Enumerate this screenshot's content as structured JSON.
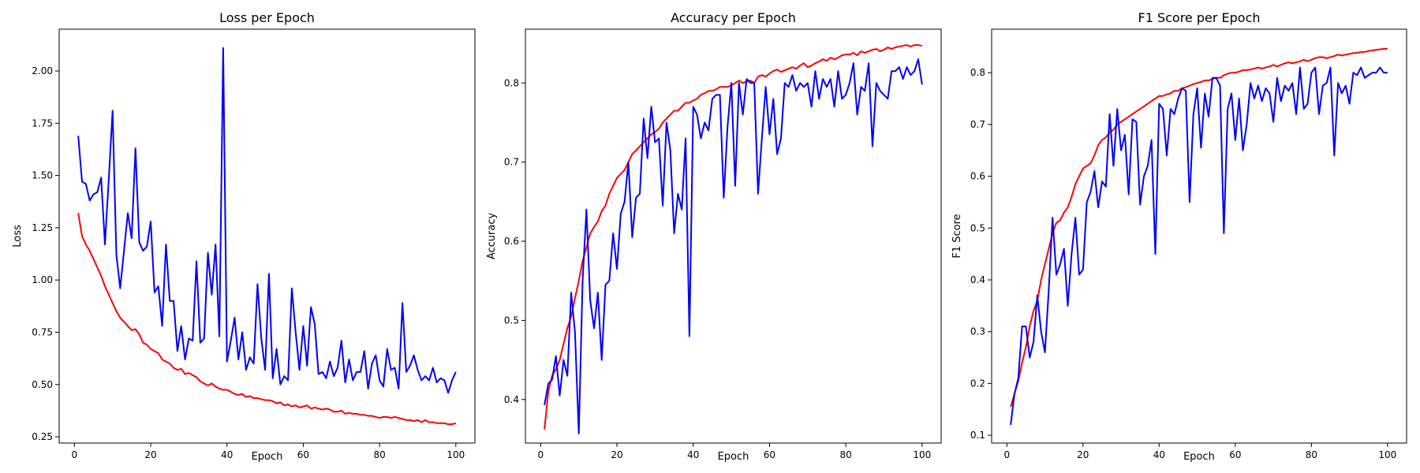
{
  "chart_data": [
    {
      "type": "line",
      "title": "Loss per Epoch",
      "xlabel": "Epoch",
      "ylabel": "Loss",
      "xlim": [
        -4,
        105
      ],
      "ylim": [
        0.22,
        2.2
      ],
      "xticks": [
        0,
        20,
        40,
        60,
        80,
        100
      ],
      "yticks": [
        0.25,
        0.5,
        0.75,
        1.0,
        1.25,
        1.5,
        1.75,
        2.0
      ],
      "ytick_labels": [
        "0.25",
        "0.50",
        "0.75",
        "1.00",
        "1.25",
        "1.50",
        "1.75",
        "2.00"
      ],
      "grid": false,
      "series": [
        {
          "color": "#ff0000",
          "values": [
            1.32,
            1.21,
            1.17,
            1.14,
            1.1,
            1.06,
            1.02,
            0.97,
            0.93,
            0.89,
            0.85,
            0.82,
            0.8,
            0.78,
            0.76,
            0.765,
            0.74,
            0.7,
            0.69,
            0.67,
            0.66,
            0.65,
            0.62,
            0.61,
            0.6,
            0.58,
            0.57,
            0.575,
            0.55,
            0.555,
            0.545,
            0.535,
            0.515,
            0.505,
            0.495,
            0.505,
            0.49,
            0.48,
            0.475,
            0.475,
            0.465,
            0.455,
            0.45,
            0.455,
            0.44,
            0.445,
            0.435,
            0.435,
            0.43,
            0.425,
            0.425,
            0.42,
            0.41,
            0.415,
            0.4,
            0.405,
            0.395,
            0.4,
            0.39,
            0.395,
            0.4,
            0.385,
            0.39,
            0.385,
            0.38,
            0.385,
            0.38,
            0.37,
            0.37,
            0.375,
            0.36,
            0.365,
            0.36,
            0.36,
            0.355,
            0.355,
            0.35,
            0.35,
            0.345,
            0.34,
            0.345,
            0.345,
            0.34,
            0.345,
            0.34,
            0.335,
            0.33,
            0.33,
            0.325,
            0.33,
            0.32,
            0.33,
            0.32,
            0.32,
            0.315,
            0.315,
            0.315,
            0.31,
            0.31,
            0.315
          ]
        },
        {
          "color": "#0000ff",
          "values": [
            1.69,
            1.47,
            1.46,
            1.38,
            1.41,
            1.42,
            1.49,
            1.17,
            1.48,
            1.81,
            1.12,
            0.96,
            1.14,
            1.32,
            1.2,
            1.63,
            1.18,
            1.14,
            1.16,
            1.28,
            0.94,
            0.97,
            0.78,
            1.17,
            0.9,
            0.9,
            0.66,
            0.78,
            0.62,
            0.72,
            0.71,
            1.09,
            0.7,
            0.72,
            1.13,
            0.93,
            1.17,
            0.73,
            2.11,
            0.61,
            0.71,
            0.82,
            0.62,
            0.75,
            0.57,
            0.63,
            0.6,
            0.98,
            0.72,
            0.57,
            1.03,
            0.53,
            0.67,
            0.5,
            0.54,
            0.52,
            0.96,
            0.75,
            0.57,
            0.78,
            0.59,
            0.87,
            0.79,
            0.55,
            0.56,
            0.53,
            0.61,
            0.54,
            0.58,
            0.71,
            0.51,
            0.62,
            0.52,
            0.56,
            0.56,
            0.66,
            0.48,
            0.6,
            0.64,
            0.52,
            0.49,
            0.67,
            0.57,
            0.58,
            0.48,
            0.89,
            0.56,
            0.59,
            0.64,
            0.57,
            0.52,
            0.54,
            0.52,
            0.58,
            0.51,
            0.53,
            0.52,
            0.46,
            0.52,
            0.56
          ]
        }
      ]
    },
    {
      "type": "line",
      "title": "Accuracy per Epoch",
      "xlabel": "Epoch",
      "ylabel": "Accuracy",
      "xlim": [
        -4,
        105
      ],
      "ylim": [
        0.345,
        0.868
      ],
      "xticks": [
        0,
        20,
        40,
        60,
        80,
        100
      ],
      "yticks": [
        0.4,
        0.5,
        0.6,
        0.7,
        0.8
      ],
      "ytick_labels": [
        "0.4",
        "0.5",
        "0.6",
        "0.7",
        "0.8"
      ],
      "grid": false,
      "series": [
        {
          "color": "#ff0000",
          "values": [
            0.362,
            0.41,
            0.43,
            0.438,
            0.45,
            0.47,
            0.49,
            0.505,
            0.528,
            0.55,
            0.575,
            0.592,
            0.61,
            0.618,
            0.625,
            0.638,
            0.645,
            0.66,
            0.67,
            0.68,
            0.685,
            0.69,
            0.7,
            0.71,
            0.715,
            0.72,
            0.725,
            0.73,
            0.735,
            0.738,
            0.742,
            0.75,
            0.755,
            0.76,
            0.765,
            0.765,
            0.77,
            0.775,
            0.775,
            0.778,
            0.78,
            0.785,
            0.787,
            0.79,
            0.79,
            0.792,
            0.795,
            0.795,
            0.795,
            0.797,
            0.8,
            0.803,
            0.8,
            0.802,
            0.803,
            0.8,
            0.808,
            0.81,
            0.808,
            0.812,
            0.815,
            0.817,
            0.814,
            0.816,
            0.818,
            0.82,
            0.818,
            0.822,
            0.825,
            0.82,
            0.822,
            0.825,
            0.827,
            0.83,
            0.828,
            0.832,
            0.83,
            0.832,
            0.835,
            0.836,
            0.836,
            0.838,
            0.835,
            0.84,
            0.838,
            0.84,
            0.842,
            0.843,
            0.84,
            0.842,
            0.845,
            0.843,
            0.845,
            0.846,
            0.847,
            0.848,
            0.846,
            0.848,
            0.848,
            0.847
          ]
        },
        {
          "color": "#0000ff",
          "values": [
            0.393,
            0.42,
            0.425,
            0.455,
            0.405,
            0.45,
            0.43,
            0.535,
            0.485,
            0.357,
            0.55,
            0.64,
            0.525,
            0.49,
            0.535,
            0.45,
            0.545,
            0.55,
            0.61,
            0.565,
            0.635,
            0.65,
            0.7,
            0.605,
            0.655,
            0.66,
            0.755,
            0.705,
            0.77,
            0.725,
            0.73,
            0.645,
            0.75,
            0.715,
            0.61,
            0.66,
            0.64,
            0.73,
            0.48,
            0.77,
            0.76,
            0.73,
            0.75,
            0.74,
            0.78,
            0.785,
            0.785,
            0.655,
            0.745,
            0.8,
            0.67,
            0.8,
            0.76,
            0.805,
            0.8,
            0.8,
            0.66,
            0.73,
            0.795,
            0.735,
            0.78,
            0.71,
            0.73,
            0.8,
            0.795,
            0.81,
            0.79,
            0.8,
            0.795,
            0.8,
            0.77,
            0.815,
            0.78,
            0.805,
            0.795,
            0.805,
            0.77,
            0.815,
            0.78,
            0.785,
            0.8,
            0.825,
            0.76,
            0.795,
            0.79,
            0.825,
            0.72,
            0.8,
            0.79,
            0.785,
            0.78,
            0.815,
            0.815,
            0.82,
            0.805,
            0.82,
            0.81,
            0.815,
            0.83,
            0.798
          ]
        }
      ]
    },
    {
      "type": "line",
      "title": "F1 Score per Epoch",
      "xlabel": "Epoch",
      "ylabel": "F1 Score",
      "xlim": [
        -4,
        105
      ],
      "ylim": [
        0.085,
        0.884
      ],
      "xticks": [
        0,
        20,
        40,
        60,
        80,
        100
      ],
      "yticks": [
        0.1,
        0.2,
        0.3,
        0.4,
        0.5,
        0.6,
        0.7,
        0.8
      ],
      "ytick_labels": [
        "0.1",
        "0.2",
        "0.3",
        "0.4",
        "0.5",
        "0.6",
        "0.7",
        "0.8"
      ],
      "grid": false,
      "series": [
        {
          "color": "#ff0000",
          "values": [
            0.155,
            0.18,
            0.205,
            0.24,
            0.27,
            0.31,
            0.34,
            0.36,
            0.4,
            0.43,
            0.46,
            0.49,
            0.51,
            0.515,
            0.53,
            0.54,
            0.56,
            0.585,
            0.6,
            0.615,
            0.62,
            0.625,
            0.64,
            0.66,
            0.67,
            0.675,
            0.685,
            0.69,
            0.7,
            0.705,
            0.71,
            0.715,
            0.72,
            0.725,
            0.73,
            0.735,
            0.74,
            0.745,
            0.75,
            0.755,
            0.755,
            0.758,
            0.76,
            0.765,
            0.765,
            0.77,
            0.772,
            0.775,
            0.778,
            0.78,
            0.782,
            0.785,
            0.785,
            0.788,
            0.79,
            0.79,
            0.795,
            0.798,
            0.8,
            0.8,
            0.802,
            0.805,
            0.805,
            0.806,
            0.808,
            0.81,
            0.808,
            0.81,
            0.812,
            0.815,
            0.812,
            0.815,
            0.818,
            0.82,
            0.818,
            0.82,
            0.822,
            0.825,
            0.822,
            0.825,
            0.828,
            0.83,
            0.83,
            0.828,
            0.83,
            0.832,
            0.835,
            0.833,
            0.835,
            0.836,
            0.838,
            0.838,
            0.84,
            0.84,
            0.842,
            0.843,
            0.844,
            0.845,
            0.846,
            0.846
          ]
        },
        {
          "color": "#0000ff",
          "values": [
            0.12,
            0.18,
            0.21,
            0.31,
            0.31,
            0.25,
            0.28,
            0.37,
            0.3,
            0.26,
            0.38,
            0.52,
            0.41,
            0.43,
            0.46,
            0.35,
            0.45,
            0.52,
            0.41,
            0.42,
            0.55,
            0.57,
            0.61,
            0.54,
            0.59,
            0.58,
            0.72,
            0.62,
            0.73,
            0.65,
            0.68,
            0.565,
            0.71,
            0.705,
            0.545,
            0.6,
            0.62,
            0.67,
            0.45,
            0.74,
            0.73,
            0.64,
            0.73,
            0.72,
            0.75,
            0.77,
            0.765,
            0.55,
            0.72,
            0.77,
            0.655,
            0.76,
            0.715,
            0.79,
            0.79,
            0.775,
            0.49,
            0.73,
            0.76,
            0.67,
            0.75,
            0.65,
            0.7,
            0.78,
            0.75,
            0.775,
            0.745,
            0.77,
            0.76,
            0.705,
            0.79,
            0.745,
            0.775,
            0.765,
            0.78,
            0.72,
            0.81,
            0.73,
            0.74,
            0.8,
            0.81,
            0.72,
            0.775,
            0.78,
            0.81,
            0.64,
            0.78,
            0.76,
            0.775,
            0.74,
            0.8,
            0.795,
            0.81,
            0.79,
            0.795,
            0.8,
            0.8,
            0.81,
            0.8,
            0.8
          ]
        }
      ]
    }
  ]
}
